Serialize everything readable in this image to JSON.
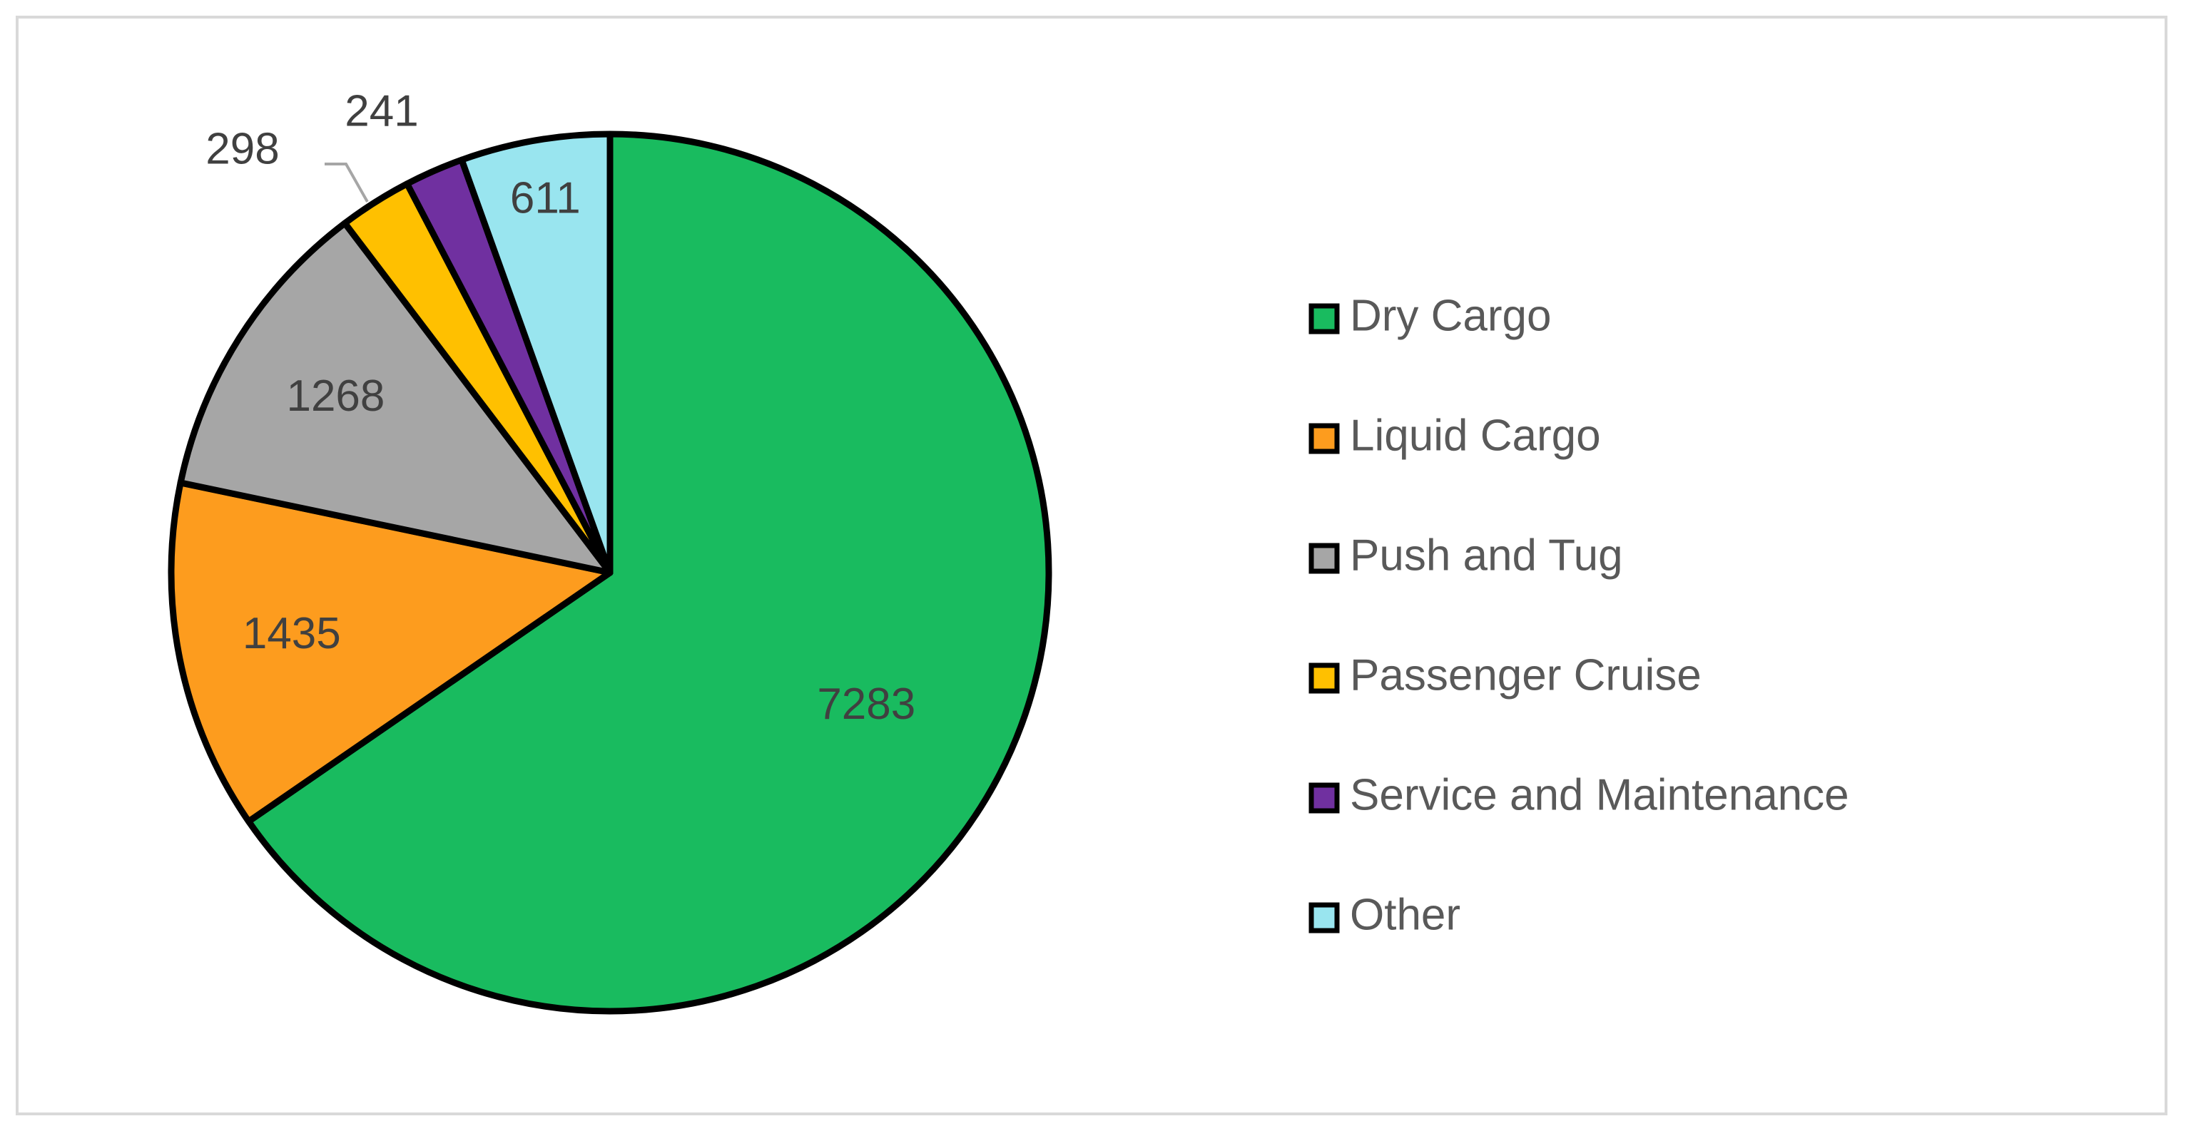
{
  "chart_data": {
    "type": "pie",
    "title": "",
    "categories": [
      "Dry Cargo",
      "Liquid Cargo",
      "Push and Tug",
      "Passenger Cruise",
      "Service and Maintenance",
      "Other"
    ],
    "values": [
      7283,
      1435,
      1268,
      298,
      241,
      611
    ],
    "colors": [
      "#19bb5f",
      "#fd9c1e",
      "#a6a6a6",
      "#ffc000",
      "#7030a0",
      "#99e5ef"
    ],
    "data_labels": [
      "7283",
      "1435",
      "1268",
      "298",
      "241",
      "611"
    ],
    "start_angle_deg": 0,
    "direction": "clockwise",
    "slice_outline_color": "#000000",
    "leader_line_color": "#a6a6a6",
    "legend_position": "right"
  }
}
